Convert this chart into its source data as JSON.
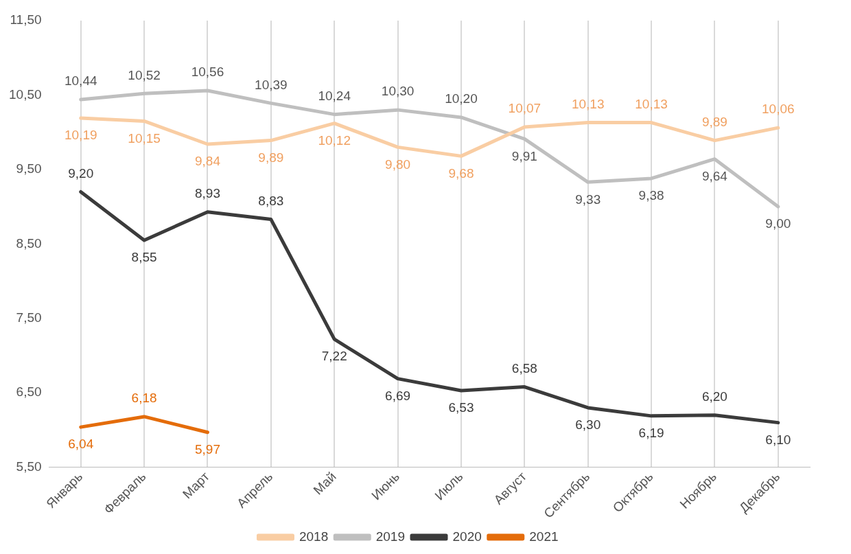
{
  "chart_data": {
    "type": "line",
    "categories": [
      "Январь",
      "Февраль",
      "Март",
      "Апрель",
      "Май",
      "Июнь",
      "Июль",
      "Август",
      "Сентябрь",
      "Октябрь",
      "Ноябрь",
      "Декабрь"
    ],
    "series": [
      {
        "name": "2018",
        "color": "#f9cda3",
        "values": [
          10.19,
          10.15,
          9.84,
          9.89,
          10.12,
          9.8,
          9.68,
          10.07,
          10.13,
          10.13,
          9.89,
          10.06
        ],
        "value_labels": [
          "10,19",
          "10,15",
          "9,84",
          "9,89",
          "10,12",
          "9,80",
          "9,68",
          "10,07",
          "10,13",
          "10,13",
          "9,89",
          "10,06"
        ]
      },
      {
        "name": "2019",
        "color": "#bfbfbf",
        "values": [
          10.44,
          10.52,
          10.56,
          10.39,
          10.24,
          10.3,
          10.2,
          9.91,
          9.33,
          9.38,
          9.64,
          9.0
        ],
        "value_labels": [
          "10,44",
          "10,52",
          "10,56",
          "10,39",
          "10,24",
          "10,30",
          "10,20",
          "9,91",
          "9,33",
          "9,38",
          "9,64",
          "9,00"
        ]
      },
      {
        "name": "2020",
        "color": "#3b3b3b",
        "values": [
          9.2,
          8.55,
          8.93,
          8.83,
          7.22,
          6.69,
          6.53,
          6.58,
          6.3,
          6.19,
          6.2,
          6.1
        ],
        "value_labels": [
          "9,20",
          "8,55",
          "8,93",
          "8,83",
          "7,22",
          "6,69",
          "6,53",
          "6,58",
          "6,30",
          "6,19",
          "6,20",
          "6,10"
        ]
      },
      {
        "name": "2021",
        "color": "#e46c0a",
        "values": [
          6.04,
          6.18,
          5.97,
          null,
          null,
          null,
          null,
          null,
          null,
          null,
          null,
          null
        ],
        "value_labels": [
          "6,04",
          "6,18",
          "5,97",
          null,
          null,
          null,
          null,
          null,
          null,
          null,
          null,
          null
        ]
      }
    ],
    "ylim": [
      5.5,
      11.5
    ],
    "yticks": [
      {
        "value": 5.5,
        "label": "5,50"
      },
      {
        "value": 6.5,
        "label": "6,50"
      },
      {
        "value": 7.5,
        "label": "7,50"
      },
      {
        "value": 8.5,
        "label": "8,50"
      },
      {
        "value": 9.5,
        "label": "9,50"
      },
      {
        "value": 10.5,
        "label": "10,50"
      },
      {
        "value": 11.5,
        "label": "11,50"
      }
    ],
    "grid": "x",
    "legend": "bottom",
    "marker": "none",
    "line_style": "solid"
  }
}
